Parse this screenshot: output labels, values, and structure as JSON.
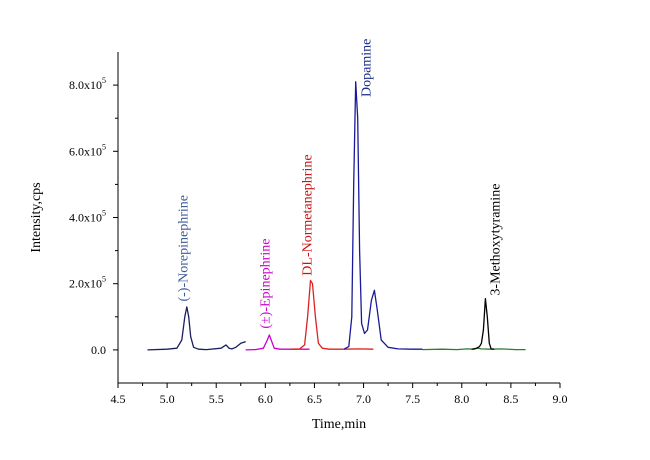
{
  "chart_data": {
    "type": "line",
    "xlabel": "Time,min",
    "ylabel": "Intensity,cps",
    "xlim": [
      4.5,
      9.0
    ],
    "ylim": [
      -100000,
      900000
    ],
    "grid": false,
    "x_ticks": [
      4.5,
      5.0,
      5.5,
      6.0,
      6.5,
      7.0,
      7.5,
      8.0,
      8.5,
      9.0
    ],
    "x_tick_labels": [
      "4.5",
      "5.0",
      "5.5",
      "6.0",
      "6.5",
      "7.0",
      "7.5",
      "8.0",
      "8.5",
      "9.0"
    ],
    "y_ticks": [
      0,
      200000,
      400000,
      600000,
      800000
    ],
    "y_tick_labels": [
      {
        "mantissa": "0.0",
        "exp": ""
      },
      {
        "mantissa": "2.0x10",
        "exp": "5"
      },
      {
        "mantissa": "4.0x10",
        "exp": "5"
      },
      {
        "mantissa": "6.0x10",
        "exp": "5"
      },
      {
        "mantissa": "8.0x10",
        "exp": "5"
      }
    ],
    "series": [
      {
        "name": "(-)-Norepinephrine",
        "color": "#1a1f5e",
        "label_color": "#3b5a9a",
        "x": [
          4.8,
          5.0,
          5.1,
          5.15,
          5.18,
          5.2,
          5.22,
          5.24,
          5.27,
          5.32,
          5.4,
          5.55,
          5.6,
          5.63,
          5.66,
          5.7,
          5.75,
          5.8
        ],
        "y": [
          0,
          2000,
          5000,
          30000,
          100000,
          130000,
          100000,
          40000,
          8000,
          2000,
          1000,
          5000,
          15000,
          5000,
          3000,
          8000,
          20000,
          25000
        ],
        "peak_x": 5.21
      },
      {
        "name": "(±)-Epinephrine",
        "color": "#cc00cc",
        "label_color": "#cc00cc",
        "x": [
          5.8,
          5.9,
          5.98,
          6.02,
          6.04,
          6.06,
          6.09,
          6.15,
          6.25,
          6.35,
          6.45
        ],
        "y": [
          0,
          1000,
          5000,
          30000,
          45000,
          30000,
          5000,
          2000,
          2000,
          2000,
          2000
        ],
        "peak_x": 6.04
      },
      {
        "name": "DL-Normetanephrine",
        "color": "#dd2222",
        "label_color": "#cc1111",
        "x": [
          6.25,
          6.35,
          6.4,
          6.43,
          6.46,
          6.48,
          6.51,
          6.54,
          6.58,
          6.65,
          6.8,
          6.95,
          7.1
        ],
        "y": [
          2000,
          3000,
          15000,
          100000,
          210000,
          200000,
          100000,
          20000,
          5000,
          2000,
          2000,
          3000,
          2000
        ],
        "peak_x": 6.47
      },
      {
        "name": "Dopamine",
        "color": "#1a1a99",
        "label_color": "#1a2a8a",
        "x": [
          6.8,
          6.85,
          6.88,
          6.9,
          6.92,
          6.94,
          6.96,
          6.98,
          7.01,
          7.04,
          7.08,
          7.11,
          7.14,
          7.18,
          7.25,
          7.35,
          7.5,
          7.6
        ],
        "y": [
          2000,
          10000,
          100000,
          500000,
          810000,
          700000,
          300000,
          80000,
          50000,
          60000,
          150000,
          180000,
          120000,
          30000,
          8000,
          3000,
          2000,
          2000
        ],
        "peak_x": 6.93
      },
      {
        "name": "",
        "color": "#2e7d32",
        "label_color": "#2e7d32",
        "x": [
          7.6,
          7.8,
          7.95,
          8.05,
          8.12,
          8.16,
          8.2,
          8.3,
          8.4,
          8.55,
          8.65
        ],
        "y": [
          1000,
          2000,
          1000,
          3000,
          2000,
          5000,
          3000,
          2000,
          3000,
          1000,
          1000
        ],
        "peak_x": 8.2
      },
      {
        "name": "3-Methoxytyramine",
        "color": "#000000",
        "label_color": "#000000",
        "x": [
          8.1,
          8.15,
          8.18,
          8.2,
          8.22,
          8.24,
          8.26,
          8.28,
          8.3,
          8.33
        ],
        "y": [
          2000,
          5000,
          10000,
          20000,
          60000,
          155000,
          100000,
          20000,
          3000,
          2000
        ],
        "peak_x": 8.24
      }
    ]
  }
}
